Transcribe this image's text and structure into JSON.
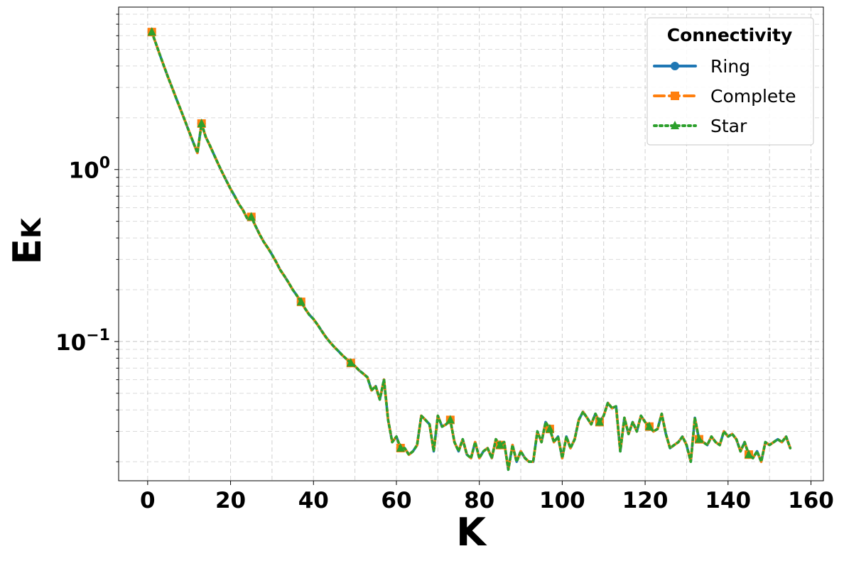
{
  "chart_data": {
    "type": "line",
    "xlabel": "K",
    "ylabel_main": "E",
    "ylabel_sub": "K",
    "yscale": "log",
    "xlim": [
      -7,
      163
    ],
    "ylim": [
      0.0155,
      8.8
    ],
    "grid": true,
    "x_ticks": [
      0,
      20,
      40,
      60,
      80,
      100,
      120,
      140,
      160
    ],
    "x_tick_labels": [
      "0",
      "20",
      "40",
      "60",
      "80",
      "100",
      "120",
      "140",
      "160"
    ],
    "y_ticks": [
      1,
      0.1
    ],
    "y_tick_labels": [
      {
        "base": "10",
        "exp": "0"
      },
      {
        "base": "10",
        "exp": "−1"
      }
    ],
    "legend": {
      "title": "Connectivity",
      "position": "top-right"
    },
    "series": [
      {
        "name": "Ring",
        "color": "#1f77b4",
        "style": "solid",
        "marker": "circle",
        "markevery": 12
      },
      {
        "name": "Complete",
        "color": "#ff7f0e",
        "style": "dashed",
        "marker": "square",
        "markevery": 12
      },
      {
        "name": "Star",
        "color": "#2ca02c",
        "style": "dotted",
        "marker": "triangle",
        "markevery": 12
      }
    ],
    "x": [
      1,
      2,
      3,
      4,
      5,
      6,
      7,
      8,
      9,
      10,
      11,
      12,
      13,
      14,
      15,
      16,
      17,
      18,
      19,
      20,
      21,
      22,
      23,
      24,
      25,
      26,
      27,
      28,
      29,
      30,
      31,
      32,
      33,
      34,
      35,
      36,
      37,
      38,
      39,
      40,
      41,
      42,
      43,
      44,
      45,
      46,
      47,
      48,
      49,
      50,
      51,
      52,
      53,
      54,
      55,
      56,
      57,
      58,
      59,
      60,
      61,
      62,
      63,
      64,
      65,
      66,
      67,
      68,
      69,
      70,
      71,
      72,
      73,
      74,
      75,
      76,
      77,
      78,
      79,
      80,
      81,
      82,
      83,
      84,
      85,
      86,
      87,
      88,
      89,
      90,
      91,
      92,
      93,
      94,
      95,
      96,
      97,
      98,
      99,
      100,
      101,
      102,
      103,
      104,
      105,
      106,
      107,
      108,
      109,
      110,
      111,
      112,
      113,
      114,
      115,
      116,
      117,
      118,
      119,
      120,
      121,
      122,
      123,
      124,
      125,
      126,
      127,
      128,
      129,
      130,
      131,
      132,
      133,
      134,
      135,
      136,
      137,
      138,
      139,
      140,
      141,
      142,
      143,
      144,
      145,
      146,
      147,
      148,
      149,
      150,
      151,
      152,
      153,
      154,
      155
    ],
    "y": [
      6.3,
      5.4,
      4.6,
      3.95,
      3.4,
      2.95,
      2.55,
      2.22,
      1.92,
      1.66,
      1.44,
      1.25,
      1.85,
      1.55,
      1.38,
      1.22,
      1.08,
      0.96,
      0.86,
      0.77,
      0.7,
      0.63,
      0.58,
      0.52,
      0.53,
      0.47,
      0.42,
      0.38,
      0.35,
      0.32,
      0.29,
      0.26,
      0.24,
      0.22,
      0.2,
      0.185,
      0.17,
      0.155,
      0.143,
      0.135,
      0.125,
      0.115,
      0.106,
      0.099,
      0.093,
      0.088,
      0.083,
      0.079,
      0.075,
      0.072,
      0.068,
      0.065,
      0.062,
      0.052,
      0.055,
      0.046,
      0.06,
      0.035,
      0.026,
      0.028,
      0.024,
      0.024,
      0.022,
      0.023,
      0.025,
      0.037,
      0.035,
      0.033,
      0.023,
      0.037,
      0.032,
      0.033,
      0.035,
      0.026,
      0.023,
      0.027,
      0.022,
      0.021,
      0.026,
      0.021,
      0.023,
      0.024,
      0.021,
      0.027,
      0.025,
      0.026,
      0.018,
      0.025,
      0.02,
      0.023,
      0.021,
      0.02,
      0.02,
      0.03,
      0.026,
      0.034,
      0.031,
      0.026,
      0.028,
      0.021,
      0.028,
      0.024,
      0.027,
      0.035,
      0.039,
      0.036,
      0.033,
      0.038,
      0.034,
      0.037,
      0.044,
      0.041,
      0.042,
      0.023,
      0.036,
      0.029,
      0.034,
      0.03,
      0.037,
      0.034,
      0.032,
      0.03,
      0.031,
      0.038,
      0.029,
      0.024,
      0.025,
      0.026,
      0.028,
      0.025,
      0.02,
      0.036,
      0.027,
      0.026,
      0.025,
      0.028,
      0.026,
      0.025,
      0.03,
      0.028,
      0.029,
      0.027,
      0.023,
      0.026,
      0.022,
      0.021,
      0.023,
      0.02,
      0.026,
      0.025,
      0.026,
      0.027,
      0.026,
      0.028,
      0.024
    ]
  }
}
